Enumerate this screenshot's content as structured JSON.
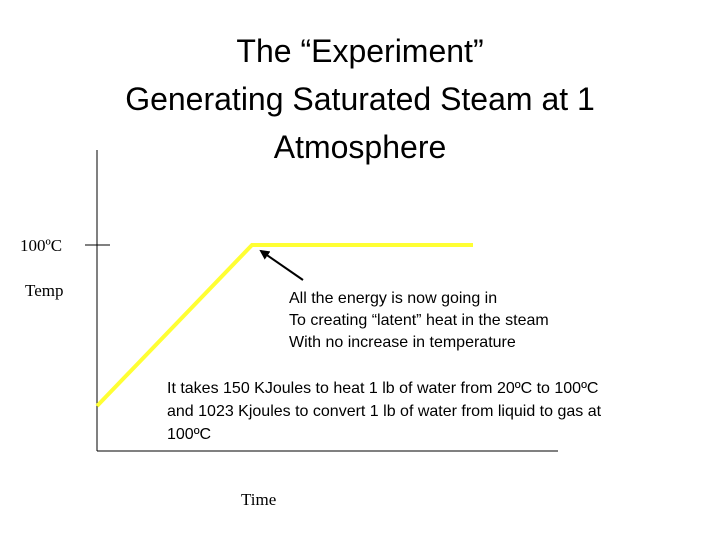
{
  "title": {
    "lines": [
      "The “Experiment”",
      "Generating Saturated Steam at 1",
      "Atmosphere"
    ]
  },
  "axes": {
    "y_tick_label": "100ºC",
    "y_label": "Temp",
    "x_label": "Time"
  },
  "annotation": {
    "lines": [
      "All the energy is now going in",
      "To creating “latent” heat in the steam",
      "With no increase in temperature"
    ]
  },
  "note": {
    "lines": [
      "It takes 150 KJoules to heat 1 lb of water from 20ºC to 100ºC",
      "and 1023 Kjoules to convert 1 lb of water from liquid to gas at",
      "100ºC"
    ]
  }
}
